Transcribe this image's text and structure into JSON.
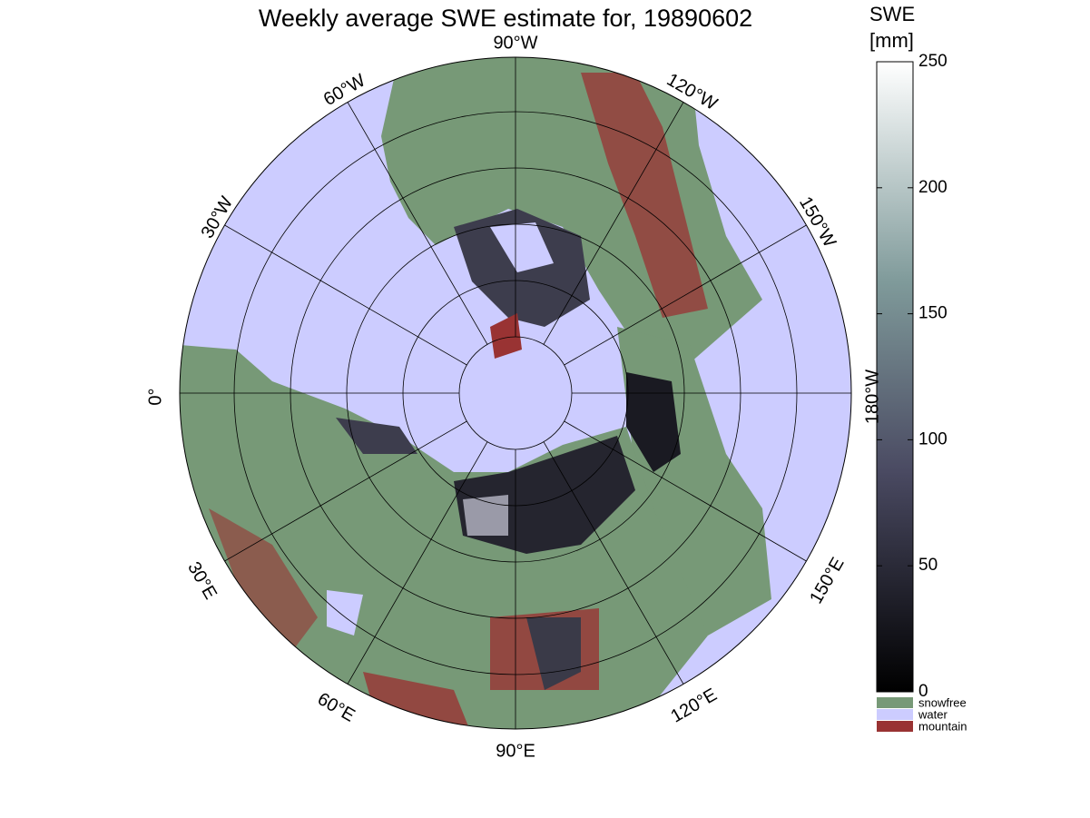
{
  "title": "Weekly average SWE estimate for, 19890602",
  "colorbar": {
    "label": [
      "SWE",
      "[mm]"
    ],
    "lim": [
      0,
      250
    ],
    "ticks": [
      0,
      50,
      100,
      150,
      200,
      250
    ]
  },
  "legend": [
    {
      "label": "snowfree",
      "color": "#779977"
    },
    {
      "label": "water",
      "color": "#ccccff"
    },
    {
      "label": "mountain",
      "color": "#993333"
    }
  ],
  "meridian_labels": [
    "90°W",
    "60°W",
    "30°W",
    "0°",
    "30°E",
    "60°E",
    "90°E",
    "120°E",
    "150°E",
    "180°W",
    "150°W",
    "120°W"
  ]
}
